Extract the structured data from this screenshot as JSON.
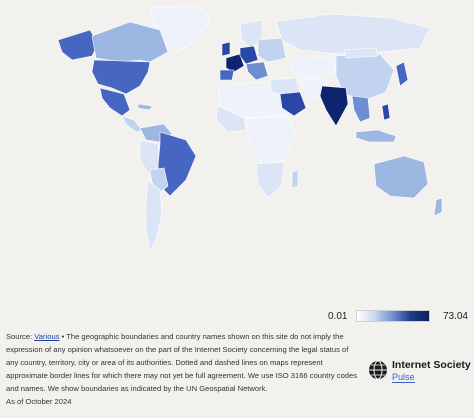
{
  "legend": {
    "min_label": "0.01",
    "max_label": "73.04",
    "colors": [
      "#ffffff",
      "#c8d6ee",
      "#6f8fd0",
      "#1e3a8a",
      "#0d1e5c"
    ]
  },
  "source": {
    "prefix": "Source:",
    "link_text": "Various",
    "text": " • The geographic boundaries and country names shown on this site do not imply the expression of any opinion whatsoever on the part of the Internet Society concerning the legal status of any country, territory, city or area of its authorities. Dotted and dashed lines on maps represent approximate border lines for which there may not yet be full agreement. We use ISO 3166 country codes and names. We show boundaries as indicated by the UN Geospatial Network.",
    "as_of": "As of October 2024"
  },
  "brand": {
    "name": "Internet Society",
    "sub": "Pulse"
  },
  "map": {
    "colors": {
      "ocean": "#f2f1ee",
      "lightest": "#eef2fa",
      "light": "#dbe5f5",
      "lightmid": "#c2d3ef",
      "mid": "#9db7e3",
      "midstrong": "#6d8fd2",
      "strong": "#4666c2",
      "dark": "#2a47a6",
      "darkest": "#0f2470"
    }
  }
}
